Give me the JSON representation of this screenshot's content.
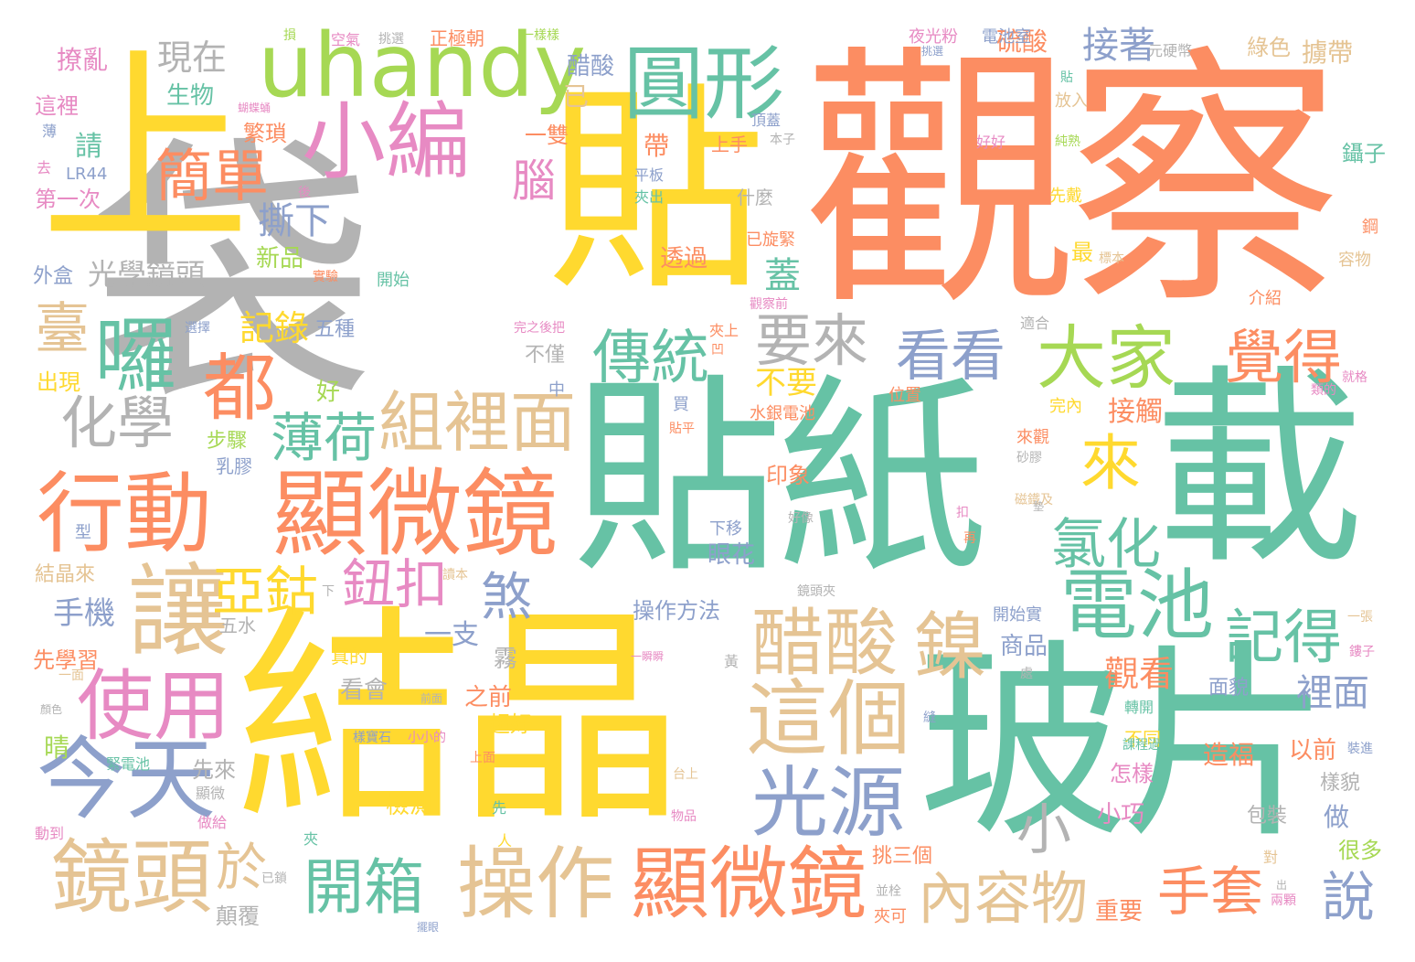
{
  "palette": {
    "orange": "#fc8d62",
    "green": "#66c2a5",
    "yellow": "#ffd92f",
    "gray": "#b3b3b3",
    "tan": "#e5c494",
    "blue": "#8da0cb",
    "pink": "#e78ac3",
    "lime": "#a6d854"
  },
  "words": [
    {
      "text": "觀察",
      "color": "#fc8d62"
    },
    {
      "text": "貼紙",
      "color": "#66c2a5"
    },
    {
      "text": "結晶",
      "color": "#ffd92f"
    },
    {
      "text": "袋",
      "color": "#b3b3b3"
    },
    {
      "text": "貼",
      "color": "#ffd92f"
    },
    {
      "text": "上",
      "color": "#ffd92f"
    },
    {
      "text": "載",
      "color": "#66c2a5"
    },
    {
      "text": "玻片",
      "color": "#66c2a5"
    },
    {
      "text": "uhandy",
      "color": "#a6d854"
    },
    {
      "text": "圓形",
      "color": "#66c2a5"
    },
    {
      "text": "小編",
      "color": "#e78ac3"
    },
    {
      "text": "簡單",
      "color": "#fc8d62"
    },
    {
      "text": "囉",
      "color": "#66c2a5"
    },
    {
      "text": "都",
      "color": "#fc8d62"
    },
    {
      "text": "行動",
      "color": "#fc8d62"
    },
    {
      "text": "顯微鏡",
      "color": "#fc8d62"
    },
    {
      "text": "化學",
      "color": "#b3b3b3"
    },
    {
      "text": "讓",
      "color": "#e5c494"
    },
    {
      "text": "使用",
      "color": "#e78ac3"
    },
    {
      "text": "今天",
      "color": "#8da0cb"
    },
    {
      "text": "鏡頭",
      "color": "#e5c494"
    },
    {
      "text": "操作",
      "color": "#e5c494"
    },
    {
      "text": "顯微鏡",
      "color": "#fc8d62"
    },
    {
      "text": "這個",
      "color": "#e5c494"
    },
    {
      "text": "醋酸",
      "color": "#e5c494"
    },
    {
      "text": "鎳",
      "color": "#e5c494"
    },
    {
      "text": "光源",
      "color": "#8da0cb"
    },
    {
      "text": "電池",
      "color": "#66c2a5"
    },
    {
      "text": "大家",
      "color": "#a6d854"
    },
    {
      "text": "看看",
      "color": "#8da0cb"
    },
    {
      "text": "要來",
      "color": "#b3b3b3"
    },
    {
      "text": "傳統",
      "color": "#66c2a5"
    },
    {
      "text": "覺得",
      "color": "#fc8d62"
    },
    {
      "text": "組裡面",
      "color": "#e5c494"
    },
    {
      "text": "薄荷",
      "color": "#66c2a5"
    },
    {
      "text": "來",
      "color": "#ffd92f"
    },
    {
      "text": "氯化",
      "color": "#66c2a5"
    },
    {
      "text": "記得",
      "color": "#66c2a5"
    },
    {
      "text": "亞鈷",
      "color": "#ffd92f"
    },
    {
      "text": "鈕扣",
      "color": "#e78ac3"
    },
    {
      "text": "煞",
      "color": "#8da0cb"
    },
    {
      "text": "開箱",
      "color": "#66c2a5"
    },
    {
      "text": "內容物",
      "color": "#e5c494"
    },
    {
      "text": "手套",
      "color": "#fc8d62"
    },
    {
      "text": "說",
      "color": "#8da0cb"
    },
    {
      "text": "小",
      "color": "#b3b3b3"
    },
    {
      "text": "於",
      "color": "#e5c494"
    },
    {
      "text": "臺",
      "color": "#e5c494"
    },
    {
      "text": "腦",
      "color": "#e78ac3"
    },
    {
      "text": "現在",
      "color": "#b3b3b3"
    },
    {
      "text": "接著",
      "color": "#8da0cb"
    },
    {
      "text": "撕下",
      "color": "#8da0cb"
    },
    {
      "text": "記錄",
      "color": "#ffd92f"
    },
    {
      "text": "光學鏡頭",
      "color": "#b3b3b3"
    },
    {
      "text": "觀看",
      "color": "#fc8d62"
    },
    {
      "text": "裡面",
      "color": "#8da0cb"
    },
    {
      "text": "醋酸",
      "color": "#8da0cb"
    },
    {
      "text": "硫酸",
      "color": "#fc8d62"
    },
    {
      "text": "擄帶",
      "color": "#e5c494"
    },
    {
      "text": "綠色",
      "color": "#e5c494"
    },
    {
      "text": "夜光粉",
      "color": "#e78ac3"
    },
    {
      "text": "電池室",
      "color": "#8da0cb"
    },
    {
      "text": "正極朝",
      "color": "#fc8d62"
    },
    {
      "text": "空氣",
      "color": "#e78ac3"
    },
    {
      "text": "撩亂",
      "color": "#e78ac3"
    },
    {
      "text": "這裡",
      "color": "#e78ac3"
    },
    {
      "text": "請",
      "color": "#66c2a5"
    },
    {
      "text": "第一次",
      "color": "#e78ac3"
    },
    {
      "text": "生物",
      "color": "#66c2a5"
    },
    {
      "text": "繁瑣",
      "color": "#fc8d62"
    },
    {
      "text": "新品",
      "color": "#a6d854"
    },
    {
      "text": "外盒",
      "color": "#8da0cb"
    },
    {
      "text": "五種",
      "color": "#8da0cb"
    },
    {
      "text": "出現",
      "color": "#ffd92f"
    },
    {
      "text": "步驟",
      "color": "#a6d854"
    },
    {
      "text": "乳膠",
      "color": "#8da0cb"
    },
    {
      "text": "好",
      "color": "#a6d854"
    },
    {
      "text": "手機",
      "color": "#8da0cb"
    },
    {
      "text": "結晶來",
      "color": "#e5c494"
    },
    {
      "text": "先學習",
      "color": "#fc8d62"
    },
    {
      "text": "晴",
      "color": "#a6d854"
    },
    {
      "text": "先來",
      "color": "#b3b3b3"
    },
    {
      "text": "蓋",
      "color": "#66c2a5"
    },
    {
      "text": "不要",
      "color": "#ffd92f"
    },
    {
      "text": "一支",
      "color": "#8da0cb"
    },
    {
      "text": "霧",
      "color": "#b3b3b3"
    },
    {
      "text": "看會",
      "color": "#b3b3b3"
    },
    {
      "text": "之前",
      "color": "#fc8d62"
    },
    {
      "text": "超好",
      "color": "#ffd92f"
    },
    {
      "text": "接觸",
      "color": "#fc8d62"
    },
    {
      "text": "商品",
      "color": "#8da0cb"
    },
    {
      "text": "透過",
      "color": "#fc8d62"
    },
    {
      "text": "眼花",
      "color": "#8da0cb"
    },
    {
      "text": "操作方法",
      "color": "#8da0cb"
    },
    {
      "text": "印象",
      "color": "#fc8d62"
    },
    {
      "text": "造福",
      "color": "#fc8d62"
    },
    {
      "text": "以前",
      "color": "#fc8d62"
    },
    {
      "text": "怎樣",
      "color": "#e78ac3"
    },
    {
      "text": "小巧",
      "color": "#e78ac3"
    },
    {
      "text": "很多",
      "color": "#a6d854"
    },
    {
      "text": "做",
      "color": "#8da0cb"
    },
    {
      "text": "重要",
      "color": "#fc8d62"
    },
    {
      "text": "挑三個",
      "color": "#fc8d62"
    },
    {
      "text": "檢測",
      "color": "#ffd92f"
    },
    {
      "text": "顛覆",
      "color": "#b3b3b3"
    },
    {
      "text": "面貌",
      "color": "#8da0cb"
    },
    {
      "text": "包裝",
      "color": "#b3b3b3"
    },
    {
      "text": "樣貌",
      "color": "#b3b3b3"
    },
    {
      "text": "上手",
      "color": "#fc8d62"
    },
    {
      "text": "帶",
      "color": "#fc8d62"
    },
    {
      "text": "一雙",
      "color": "#fc8d62"
    },
    {
      "text": "已",
      "color": "#e5c494"
    },
    {
      "text": "鑷子",
      "color": "#66c2a5"
    },
    {
      "text": "什麼",
      "color": "#b3b3b3"
    },
    {
      "text": "不同",
      "color": "#ffd92f"
    },
    {
      "text": "不僅",
      "color": "#b3b3b3"
    },
    {
      "text": "開始",
      "color": "#66c2a5"
    },
    {
      "text": "水銀電池",
      "color": "#fc8d62"
    },
    {
      "text": "位置",
      "color": "#fc8d62"
    },
    {
      "text": "真的",
      "color": "#ffd92f"
    },
    {
      "text": "五水",
      "color": "#b3b3b3"
    },
    {
      "text": "下移",
      "color": "#8da0cb"
    },
    {
      "text": "已旋緊",
      "color": "#fc8d62"
    },
    {
      "text": "適合",
      "color": "#b3b3b3"
    },
    {
      "text": "介紹",
      "color": "#fc8d62"
    },
    {
      "text": "容物",
      "color": "#e5c494"
    },
    {
      "text": "先戴",
      "color": "#ffd92f"
    },
    {
      "text": "放入",
      "color": "#e5c494"
    },
    {
      "text": "最",
      "color": "#ffd92f"
    },
    {
      "text": "完內",
      "color": "#ffd92f"
    },
    {
      "text": "來觀",
      "color": "#fc8d62"
    },
    {
      "text": "開始實",
      "color": "#8da0cb"
    },
    {
      "text": "轉開",
      "color": "#66c2a5"
    },
    {
      "text": "夾可",
      "color": "#fc8d62"
    },
    {
      "text": "平板",
      "color": "#8da0cb"
    },
    {
      "text": "夾出",
      "color": "#66c2a5"
    },
    {
      "text": "LR44",
      "color": "#8da0cb"
    },
    {
      "text": "元硬幣",
      "color": "#b3b3b3"
    },
    {
      "text": "一樣樣",
      "color": "#a6d854"
    },
    {
      "text": "挑選",
      "color": "#b3b3b3"
    },
    {
      "text": "頂蓋",
      "color": "#8da0cb"
    },
    {
      "text": "本子",
      "color": "#b3b3b3"
    },
    {
      "text": "好好",
      "color": "#e78ac3"
    },
    {
      "text": "純熟",
      "color": "#a6d854"
    },
    {
      "text": "鋼",
      "color": "#fc8d62"
    },
    {
      "text": "標本",
      "color": "#e5c494"
    },
    {
      "text": "實驗",
      "color": "#fc8d62"
    },
    {
      "text": "觀察前",
      "color": "#e78ac3"
    },
    {
      "text": "選擇",
      "color": "#8da0cb"
    },
    {
      "text": "完之後把",
      "color": "#e78ac3"
    },
    {
      "text": "夾上",
      "color": "#fc8d62"
    },
    {
      "text": "凹",
      "color": "#fc8d62"
    },
    {
      "text": "中",
      "color": "#8da0cb"
    },
    {
      "text": "買",
      "color": "#8da0cb"
    },
    {
      "text": "貼平",
      "color": "#fc8d62"
    },
    {
      "text": "型",
      "color": "#8da0cb"
    },
    {
      "text": "一面",
      "color": "#e5c494"
    },
    {
      "text": "顏色",
      "color": "#b3b3b3"
    },
    {
      "text": "緊電池",
      "color": "#66c2a5"
    },
    {
      "text": "顯微",
      "color": "#b3b3b3"
    },
    {
      "text": "做給",
      "color": "#e78ac3"
    },
    {
      "text": "動到",
      "color": "#e78ac3"
    },
    {
      "text": "夾",
      "color": "#66c2a5"
    },
    {
      "text": "已鎖",
      "color": "#b3b3b3"
    },
    {
      "text": "樣寶石",
      "color": "#8da0cb"
    },
    {
      "text": "小小的",
      "color": "#e78ac3"
    },
    {
      "text": "前面",
      "color": "#b3b3b3"
    },
    {
      "text": "上面",
      "color": "#fc8d62"
    },
    {
      "text": "台上",
      "color": "#e5c494"
    },
    {
      "text": "物品",
      "color": "#e78ac3"
    },
    {
      "text": "先",
      "color": "#66c2a5"
    },
    {
      "text": "人",
      "color": "#ffd92f"
    },
    {
      "text": "並栓",
      "color": "#b3b3b3"
    },
    {
      "text": "擺眼",
      "color": "#8da0cb"
    },
    {
      "text": "兩顆",
      "color": "#e78ac3"
    },
    {
      "text": "出",
      "color": "#b3b3b3"
    },
    {
      "text": "對",
      "color": "#e5c494"
    },
    {
      "text": "課程過",
      "color": "#66c2a5"
    },
    {
      "text": "裝進",
      "color": "#8da0cb"
    },
    {
      "text": "處",
      "color": "#b3b3b3"
    },
    {
      "text": "黃",
      "color": "#b3b3b3"
    },
    {
      "text": "一瞬瞬",
      "color": "#e78ac3"
    },
    {
      "text": "鏡頭夾",
      "color": "#b3b3b3"
    },
    {
      "text": "一張",
      "color": "#e5c494"
    },
    {
      "text": "鏤子",
      "color": "#e78ac3"
    },
    {
      "text": "磁鐵及",
      "color": "#e5c494"
    },
    {
      "text": "砂膠",
      "color": "#b3b3b3"
    },
    {
      "text": "扣",
      "color": "#e78ac3"
    },
    {
      "text": "再",
      "color": "#fc8d62"
    },
    {
      "text": "墊",
      "color": "#b3b3b3"
    },
    {
      "text": "好像",
      "color": "#b3b3b3"
    },
    {
      "text": "下",
      "color": "#b3b3b3"
    },
    {
      "text": "讀本",
      "color": "#e5c494"
    },
    {
      "text": "縫",
      "color": "#8da0cb"
    },
    {
      "text": "類的",
      "color": "#e78ac3"
    },
    {
      "text": "就格",
      "color": "#e78ac3"
    },
    {
      "text": "貼",
      "color": "#66c2a5"
    },
    {
      "text": "損",
      "color": "#a6d854"
    },
    {
      "text": "挑選",
      "color": "#8da0cb"
    },
    {
      "text": "後",
      "color": "#e78ac3"
    },
    {
      "text": "去",
      "color": "#e78ac3"
    },
    {
      "text": "薄",
      "color": "#8da0cb"
    },
    {
      "text": "蝴蝶蛹",
      "color": "#e78ac3"
    }
  ]
}
